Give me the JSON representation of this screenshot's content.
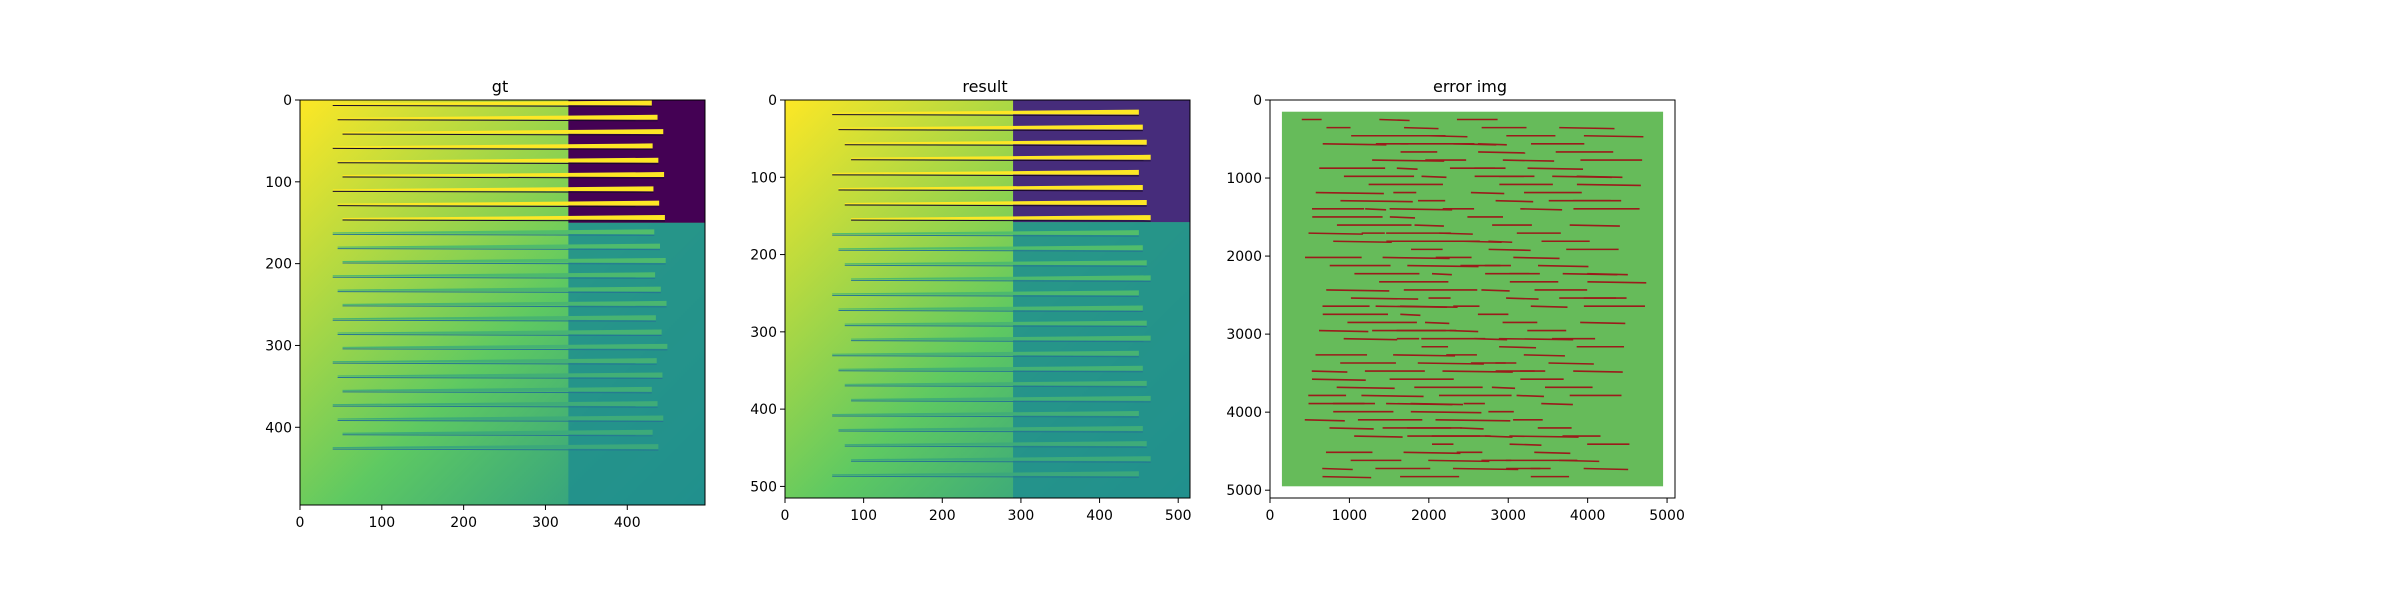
{
  "chart_data": [
    {
      "type": "heatmap",
      "title": "gt",
      "xlabel": "",
      "ylabel": "",
      "xlim": [
        0,
        495
      ],
      "ylim": [
        495,
        0
      ],
      "xticks": [
        0,
        100,
        200,
        300,
        400
      ],
      "yticks": [
        0,
        100,
        200,
        300,
        400
      ],
      "xtick_labels": [
        "0",
        "100",
        "200",
        "300",
        "400"
      ],
      "ytick_labels": [
        "0",
        "100",
        "200",
        "300",
        "400"
      ],
      "colormap": "viridis",
      "description_of_content": "depth-like map with horizontal stripes",
      "stripes": {
        "count": 25,
        "row_start": 3,
        "row_step": 17.5
      },
      "dark_region": {
        "x_from": 328,
        "x_to": 495,
        "y_from": 0,
        "y_to": 150
      }
    },
    {
      "type": "heatmap",
      "title": "result",
      "xlabel": "",
      "ylabel": "",
      "xlim": [
        0,
        515
      ],
      "ylim": [
        515,
        0
      ],
      "xticks": [
        0,
        100,
        200,
        300,
        400,
        500
      ],
      "yticks": [
        0,
        100,
        200,
        300,
        400,
        500
      ],
      "xtick_labels": [
        "0",
        "100",
        "200",
        "300",
        "400",
        "500"
      ],
      "ytick_labels": [
        "0",
        "100",
        "200",
        "300",
        "400",
        "500"
      ],
      "colormap": "viridis",
      "stripes": {
        "count": 25,
        "row_start": 15,
        "row_step": 19.5
      },
      "dark_region": {
        "x_from": 290,
        "x_to": 515,
        "y_from": 0,
        "y_to": 158
      }
    },
    {
      "type": "heatmap",
      "title": "error img",
      "xlabel": "",
      "ylabel": "",
      "xlim": [
        0,
        5100
      ],
      "ylim": [
        5100,
        0
      ],
      "xticks": [
        0,
        1000,
        2000,
        3000,
        4000,
        5000
      ],
      "yticks": [
        0,
        1000,
        2000,
        3000,
        4000,
        5000
      ],
      "xtick_labels": [
        "0",
        "1000",
        "2000",
        "3000",
        "4000",
        "5000"
      ],
      "ytick_labels": [
        "0",
        "1000",
        "2000",
        "3000",
        "4000",
        "5000"
      ],
      "image_extent": [
        150,
        4950,
        150,
        4950
      ],
      "error_lines": {
        "count": 45,
        "row_start": 250,
        "row_step": 104
      }
    }
  ],
  "colors": {
    "background": "#ffffff",
    "viridis_dark": "#440154",
    "viridis_purple": "#462c7b",
    "viridis_teal": "#21908d",
    "viridis_green": "#5ec962",
    "viridis_yellow": "#fde725",
    "error_green": "#66bb5a",
    "error_red": "#9b1b1b"
  }
}
